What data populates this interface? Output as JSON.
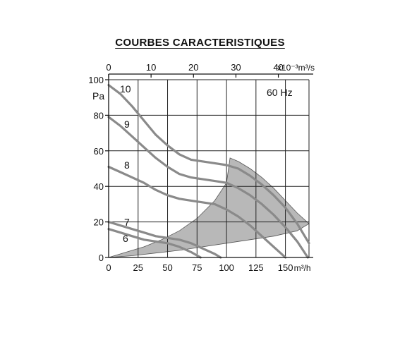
{
  "chart_data": {
    "type": "line",
    "title": "COURBES CARACTERISTIQUES",
    "annotation": "60 Hz",
    "ylabel": "Pa",
    "x_unit_bottom": "m³/h",
    "x_unit_top": "x10⁻³m³/s",
    "xlim": [
      0,
      170
    ],
    "ylim": [
      0,
      100
    ],
    "bottom_ticks": [
      "0",
      "25",
      "50",
      "75",
      "100",
      "125",
      "150"
    ],
    "bottom_tick_values": [
      0,
      25,
      50,
      75,
      100,
      125,
      150
    ],
    "top_ticks": [
      "0",
      "10",
      "20",
      "30",
      "40"
    ],
    "top_tick_values": [
      0,
      10,
      20,
      30,
      40
    ],
    "y_ticks": [
      "0",
      "20",
      "40",
      "60",
      "80",
      "100"
    ],
    "y_tick_values": [
      0,
      20,
      40,
      60,
      80,
      100
    ],
    "grid": true,
    "series": [
      {
        "name": "10",
        "x": [
          0,
          10,
          20,
          30,
          40,
          50,
          60,
          70,
          80,
          90,
          100,
          110,
          120,
          130,
          140,
          150,
          160,
          170
        ],
        "y": [
          97,
          92,
          85,
          77,
          69,
          63,
          58,
          55,
          54,
          53,
          52,
          50,
          46,
          41,
          35,
          28,
          19,
          8
        ]
      },
      {
        "name": "9",
        "x": [
          0,
          10,
          20,
          30,
          40,
          50,
          60,
          70,
          80,
          90,
          100,
          110,
          120,
          130,
          140,
          150,
          160,
          169
        ],
        "y": [
          79,
          74,
          68,
          62,
          56,
          51,
          47,
          45,
          44,
          43,
          42,
          39,
          35,
          30,
          24,
          17,
          9,
          0
        ]
      },
      {
        "name": "8",
        "x": [
          0,
          10,
          20,
          30,
          40,
          50,
          60,
          70,
          80,
          90,
          100,
          110,
          120,
          130,
          140,
          150
        ],
        "y": [
          51,
          48,
          45,
          42,
          38,
          35,
          33,
          32,
          31,
          30,
          27,
          23,
          18,
          12,
          6,
          0
        ]
      },
      {
        "name": "7",
        "x": [
          0,
          10,
          20,
          30,
          40,
          50,
          60,
          70,
          80,
          90,
          95
        ],
        "y": [
          20,
          18,
          16,
          14,
          12,
          11,
          10,
          8,
          5,
          2,
          0
        ]
      },
      {
        "name": "6",
        "x": [
          0,
          10,
          20,
          30,
          40,
          50,
          60,
          70,
          78
        ],
        "y": [
          16,
          14,
          12,
          10,
          9,
          8,
          6,
          3,
          0
        ]
      }
    ],
    "shaded_region": {
      "x": [
        0,
        15,
        30,
        45,
        60,
        75,
        90,
        100,
        103,
        110,
        120,
        130,
        140,
        150,
        160,
        170,
        160,
        140,
        120,
        100,
        80,
        60,
        40,
        20,
        0
      ],
      "y": [
        0,
        3,
        6,
        10,
        15,
        22,
        32,
        42,
        56,
        54,
        50,
        45,
        39,
        32,
        25,
        19,
        15,
        12,
        10,
        8,
        6,
        4,
        2.5,
        1,
        0
      ],
      "color": "#b8b8b8"
    },
    "colors": {
      "curve": "#8a8a8a",
      "grid": "#222222",
      "axis": "#111111"
    }
  }
}
